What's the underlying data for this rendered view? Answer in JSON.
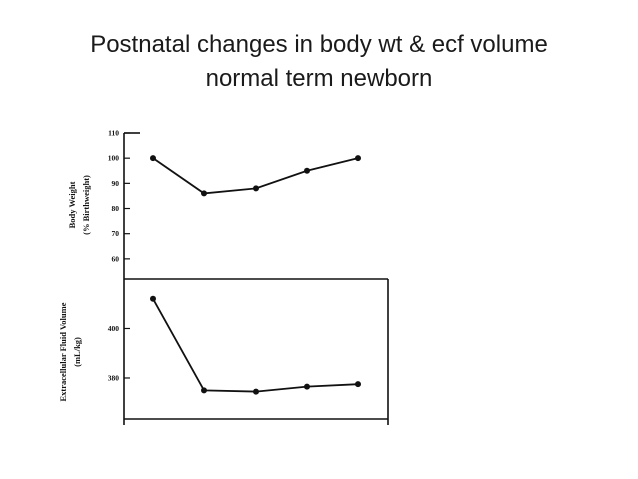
{
  "title_line1": "Postnatal changes in  body wt & ecf volume",
  "title_line2": "normal term newborn",
  "chart_data": [
    {
      "type": "line",
      "ylabel_line1": "Body Weight",
      "ylabel_line2": "(% Birthweight)",
      "x": [
        1,
        2,
        3,
        4,
        5
      ],
      "values": [
        100,
        86,
        88,
        95,
        100
      ],
      "ylim": [
        52,
        110
      ],
      "yticks": [
        110,
        100,
        90,
        80,
        70,
        60
      ],
      "grid": false
    },
    {
      "type": "line",
      "ylabel_line1": "Extracellular Fluid Volume",
      "ylabel_line2": "(mL/kg)",
      "x": [
        1,
        2,
        3,
        4,
        5
      ],
      "values": [
        412,
        375,
        374.5,
        376.5,
        377.5
      ],
      "ylim": [
        361,
        420
      ],
      "yticks": [
        400,
        380
      ],
      "grid": false
    }
  ]
}
